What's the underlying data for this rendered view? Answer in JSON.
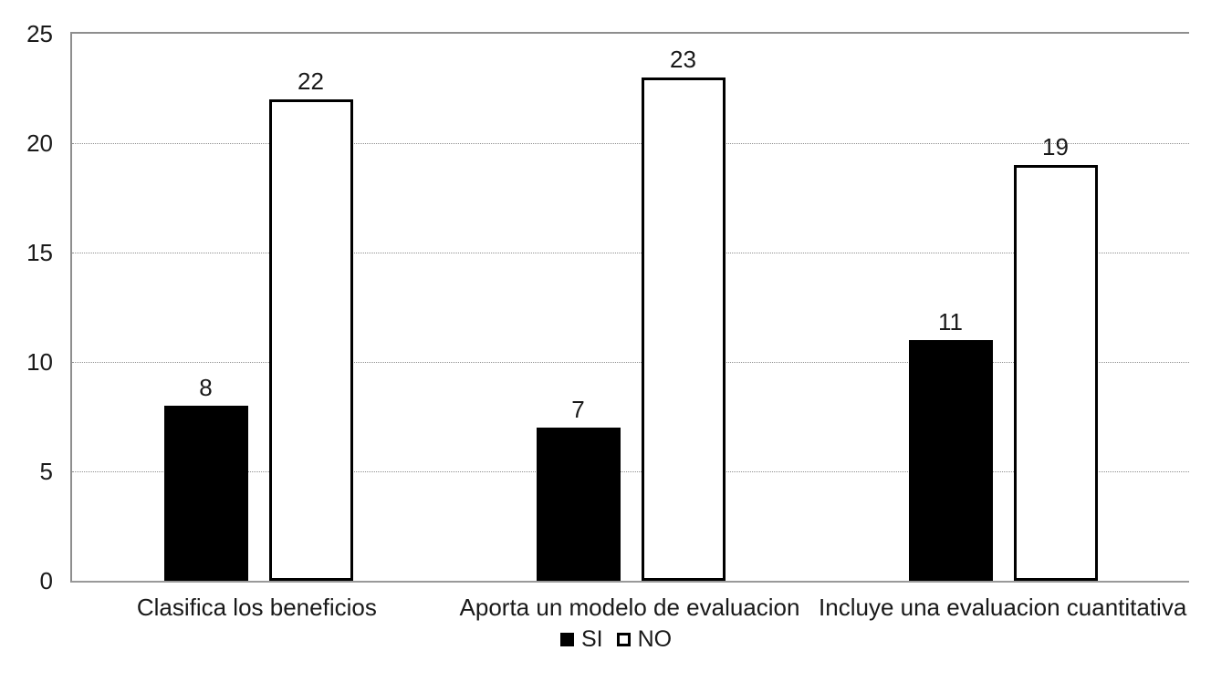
{
  "chart_data": {
    "type": "bar",
    "title": "",
    "categories": [
      "Clasifica los beneficios",
      "Aporta un modelo de evaluacion",
      "Incluye una evaluacion cuantitativa"
    ],
    "series": [
      {
        "name": "SI",
        "values": [
          8,
          7,
          11
        ],
        "fill": "#000000",
        "border": "#000000"
      },
      {
        "name": "NO",
        "values": [
          22,
          23,
          19
        ],
        "fill": "#ffffff",
        "border": "#000000"
      }
    ],
    "xlabel": "",
    "ylabel": "",
    "ylim": [
      0,
      25
    ],
    "yticks": [
      0,
      5,
      10,
      15,
      20,
      25
    ],
    "grid": "horizontal-dotted",
    "gridline_values": [
      5,
      10,
      15,
      20
    ],
    "data_labels": true,
    "legend_position": "bottom-center"
  },
  "colors": {
    "background": "#ffffff",
    "axis_line": "#8e8e8e",
    "gridline": "#8f8f8f",
    "text": "#191919",
    "si_bar": "#000000",
    "no_bar_fill": "#ffffff",
    "no_bar_border": "#000000"
  }
}
